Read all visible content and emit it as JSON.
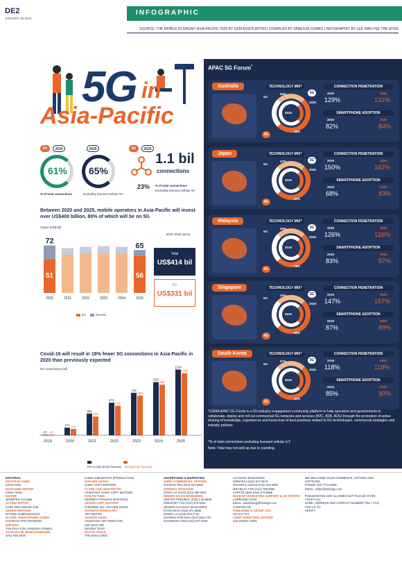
{
  "page": {
    "code": "DE2",
    "date": "JANUARY 28 2021",
    "band": "INFOGRAPHIC",
    "source": "SOURCE: THE MOBILE ECONOMY ASIA PACIFIC 2020 BY GSM ASSOCIATION | COMPILED BY VANESSA GOMES | INFOGRAPHIC BY LEE WAN YEE THE EDGE"
  },
  "headline": {
    "line1": "5G",
    "in": "in",
    "line2": "Asia-Pacific"
  },
  "stats": {
    "b4g": "4G",
    "b2019": "2019",
    "b2025": "2025",
    "b5g": "5G",
    "b5g2025": "2025",
    "p4g2019": "61%",
    "p4g2025": "65%",
    "cap1": "% of total connections",
    "cap2": "Excluding licensed cellular IoT",
    "bil": "1.1 bil",
    "conn": "connections",
    "p23": "23%",
    "cap3": "% of total connections",
    "cap4": "Excluding licensed cellular IoT"
  },
  "invest": {
    "title": "Between 2020 and 2025, mobile operators in Asia-Pacific will invest over US$400 billion, 80% of which will be on 5G",
    "capex": "Capex (US$ bil)",
    "spendlabel": "2020–2025 spend",
    "total": "Total",
    "totalv": "US$414 bil",
    "g5": "5G",
    "g5v": "US$331 bil",
    "leg5g": "5G",
    "legnon": "Non-5G"
  },
  "covid": {
    "title": "Covid-19 will result in 18% fewer 5G connections in Asia-Pacific in 2020 than previously expected",
    "ylab": "5G connections (mil)",
    "leg1": "Pre-Covid-19 5G forecast",
    "leg2": "Revised 5G forecast"
  },
  "chart_data": [
    {
      "type": "bar",
      "categories": [
        "2020",
        "2021",
        "2022",
        "2023",
        "2024",
        "2025"
      ],
      "series": [
        {
          "name": "5G",
          "values": [
            51,
            null,
            null,
            null,
            null,
            56
          ]
        },
        {
          "name": "Non-5G",
          "values": [
            21,
            null,
            null,
            null,
            null,
            9
          ]
        }
      ],
      "labels": {
        "top2020": "72",
        "top2025": "65",
        "bot2020": "51",
        "bot2025": "56"
      },
      "ylabel": "Capex (US$ bil)"
    },
    {
      "type": "bar",
      "categories": [
        "2019",
        "2020",
        "2021",
        "2022",
        "2023",
        "2024",
        "2025"
      ],
      "series": [
        {
          "name": "Pre-Covid-19 5G forecast",
          "values": [
            10,
            134,
            381,
            572,
            746,
            933,
            1154
          ]
        },
        {
          "name": "Revised 5G forecast",
          "values": [
            10,
            111,
            328,
            518,
            698,
            888,
            1090
          ]
        }
      ],
      "ylabel": "5G connections (mil)"
    }
  ],
  "forum": {
    "title": "APAC 5G Forum",
    "sup": "*",
    "note": "*GSMA APAC 5G Forum is a 5G industry engagement community platform to help operators and governments to collaborate, deploy and roll out commercial 5G networks and services (B2C, B2B, B2G) through the promotion of active sharing of knowledge, experiences and know-how of best practices related to 5G technologies, commercial strategies and industry policies.",
    "note2": "*% of total connections excluding licensed cellular IoT",
    "note3": "Note: Total may not add up due to rounding"
  },
  "labels": {
    "tm": "TECHNOLOGY MIX*",
    "cp": "CONNECTION PENETRATION",
    "sa": "SMARTPHONE ADOPTION",
    "y19": "2019",
    "y25": "2025",
    "g3": "3G",
    "g5": "5G",
    "g4": "4G"
  },
  "countries": [
    {
      "name": "Australia",
      "cp19": "129%",
      "cp25": "132%",
      "sa19": "82%",
      "sa25": "84%",
      "t1": "54%",
      "t2": "46%"
    },
    {
      "name": "Japan",
      "cp19": "150%",
      "cp25": "162%",
      "sa19": "68%",
      "sa25": "83%",
      "t1": "47%",
      "t2": "52%"
    },
    {
      "name": "Malaysia",
      "cp19": "126%",
      "cp25": "126%",
      "sa19": "83%",
      "sa25": "87%",
      "t1": "26%",
      "t2": "78%"
    },
    {
      "name": "Singapore",
      "cp19": "147%",
      "cp25": "157%",
      "sa19": "87%",
      "sa25": "89%",
      "t1": "34%",
      "t2": "65%"
    },
    {
      "name": "South Korea",
      "cp19": "118%",
      "cp25": "119%",
      "sa19": "85%",
      "sa25": "90%",
      "t1": "67%",
      "t2": "32%"
    }
  ],
  "footer": {
    "c1": [
      "EDITORIAL",
      "EDITOR-IN-CHIEF",
      "AZAM ARIS",
      "MANAGING EDITOR",
      "ANNA TENG",
      "EDITOR",
      "JENNIFER JACOBS",
      "ACTING EDITOR",
      "KUEK SER KWANG ZHE",
      "SENIOR WRITERS",
      "PATHMA SUBRAMANIAM",
      "OLIVER CHRISTOPHER GOMEZ",
      "KHAIRANI AFIFI NOORDIN",
      "WRITERS",
      "TAN ZHAI YUN, VANESSA GOMES,",
      "JOTHAM LIM, IRAM NAMIRUDIN,",
      "CHU YEE MUN"
    ],
    "c2": [
      "CHIEF SUB-EDITOR (PRODUCTION)",
      "GOH MIN LEONG",
      "CHIEF COPY EDITORS",
      "CLARE LAM, MAH PIN PIN",
      "ASSISTANT CHIEF COPY EDITORS",
      "EVELYN TUNG",
      "KENNETH FRANCIS MARTINUS",
      "SENIOR COPY EDITORS",
      "CHEWING JILL, ESTHER GOOK,",
      "SHARETH WONGGABY",
      "ART EDITOR",
      "SHARON KHOH",
      "ASSISTANT ART DIRECTOR",
      "LEE WAN YEE",
      "DESIGN TEAM",
      "RASTIA TANAK",
      "TAN SEW CHING"
    ],
    "c3": [
      "ADVERTISING & MARKETING",
      "CHIEF COMMERCIAL OFFICER",
      "SHARON TEH (012) 313 9056",
      "GENERAL MANAGER",
      "FONG LAI KUAN (012) 386 2631",
      "SENIOR SALES MANAGERS",
      "GEETHA PERUMAL (016) 3 30 8848",
      "GREGORY THU (012) 376 0604",
      "SENIOR ACCOUNT MANAGERS",
      "EVON SEAH (016) 871 8889",
      "KENNY LAI (016) 324 2722",
      "SHAFINA SYM-WAH (017) 2814 767",
      "SHANNON LONG (012) 677 5345"
    ],
    "c4": [
      "ACCOUNT MANAGERS",
      "SIRNARAJ (012) 317 8473",
      "SHAHRUL AZIZAN (012) 616 0891",
      "MICHELIA YING (012) 768 6081",
      "YVETTE LIEW (016) 273 6666",
      "HEAD OF MARKETING SUPPORT & AD TRAFFIC",
      "LORRAINE CHAN",
      "EMAIL: advertising@bizedge.com",
      "CORPORATE",
      "PUBLISHER & GROUP CEO",
      "HO KAY TAT",
      "CHIEF OPERATING OFFICER",
      "LIM SHIEW YUEN"
    ],
    "c5": [
      "WE WELCOME YOUR COMMENTS, LETTERS AND CRITICISM",
      "PHONE: (03) 7721 8000",
      "EMAIL: editor@bizedge.com",
      "",
      "PSEUDONYMS ARE ALLOWED BUT PLEASE STATE YOUR FULL",
      "NAME, ADDRESS AND CONTACT NUMBER (TEL / FAX) FOR US TO",
      "VERIFY"
    ]
  }
}
